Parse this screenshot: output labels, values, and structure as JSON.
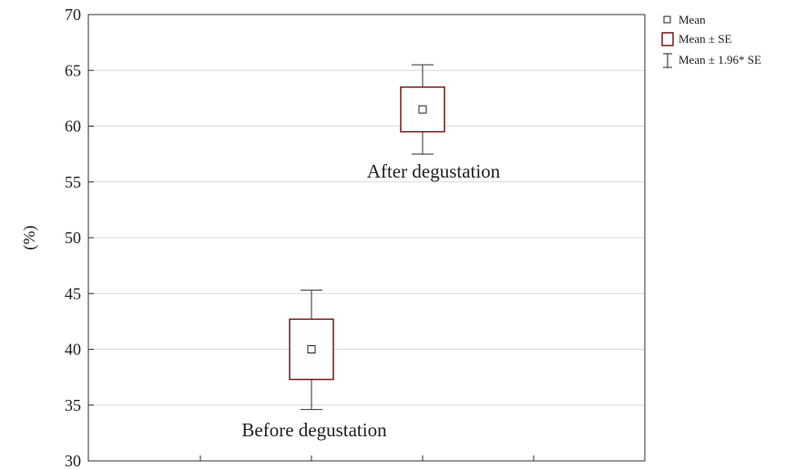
{
  "chart_data": {
    "type": "box",
    "title": "",
    "ylabel": "(%)",
    "xlabel": "",
    "ylim": [
      30,
      70
    ],
    "yticks": [
      30,
      35,
      40,
      45,
      50,
      55,
      60,
      65,
      70
    ],
    "grid": true,
    "legend": {
      "placement": "top-right outside",
      "entries": [
        {
          "label": "Mean",
          "symbol": "square-marker"
        },
        {
          "label": "Mean ± SE",
          "symbol": "box"
        },
        {
          "label": "Mean ± 1.96* SE",
          "symbol": "whisker"
        }
      ]
    },
    "groups": [
      {
        "label": "Before degustation",
        "mean": 40.0,
        "se_low": 37.3,
        "se_high": 42.7,
        "ci_low": 34.6,
        "ci_high": 45.3
      },
      {
        "label": "After degustation",
        "mean": 61.5,
        "se_low": 59.5,
        "se_high": 63.5,
        "ci_low": 57.5,
        "ci_high": 65.5
      }
    ],
    "colors": {
      "box": "#7a1a1a",
      "grid": "#d9d9d9",
      "axis": "#333333",
      "whisker": "#333333"
    }
  }
}
